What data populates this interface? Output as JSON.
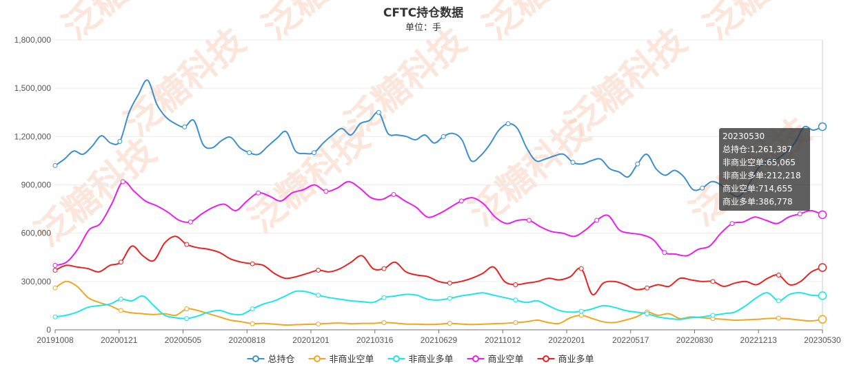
{
  "chart_data": {
    "type": "line",
    "title": "CFTC持仓数据",
    "subtitle": "单位：手",
    "watermark": "泛糖科技",
    "ylim": [
      0,
      1800000
    ],
    "yticks": [
      "0",
      "300,000",
      "600,000",
      "900,000",
      "1,200,000",
      "1,500,000",
      "1,800,000"
    ],
    "xticks": [
      "20191008",
      "20200121",
      "20200505",
      "20200818",
      "20201201",
      "20210316",
      "20210629",
      "20211012",
      "20220201",
      "20220517",
      "20220830",
      "20221213",
      "20230530"
    ],
    "x_range": [
      "20191008",
      "20230530"
    ],
    "grid": true,
    "legend_position": "bottom",
    "series": [
      {
        "name": "总持仓",
        "color": "#3b8fd0",
        "values": [
          1020000,
          1060000,
          1110000,
          1090000,
          1140000,
          1205000,
          1160000,
          1170000,
          1350000,
          1460000,
          1550000,
          1400000,
          1320000,
          1280000,
          1260000,
          1300000,
          1150000,
          1130000,
          1175000,
          1195000,
          1130000,
          1100000,
          1090000,
          1140000,
          1190000,
          1230000,
          1110000,
          1095000,
          1100000,
          1160000,
          1210000,
          1250000,
          1210000,
          1280000,
          1300000,
          1350000,
          1220000,
          1210000,
          1200000,
          1180000,
          1210000,
          1160000,
          1200000,
          1220000,
          1180000,
          1050000,
          1080000,
          1150000,
          1240000,
          1280000,
          1250000,
          1130000,
          1050000,
          1060000,
          1080000,
          1090000,
          1040000,
          1030000,
          1050000,
          1060000,
          1000000,
          980000,
          950000,
          1030000,
          1090000,
          1000000,
          960000,
          990000,
          950000,
          870000,
          880000,
          920000,
          900000,
          850000,
          830000,
          900000,
          1000000,
          1050000,
          1060000,
          1100000,
          1160000,
          1260000,
          1240000,
          1261387
        ]
      },
      {
        "name": "非商业空单",
        "color": "#f5a41c",
        "values": [
          260000,
          300000,
          270000,
          200000,
          170000,
          150000,
          120000,
          105000,
          100000,
          95000,
          100000,
          90000,
          130000,
          120000,
          100000,
          80000,
          60000,
          50000,
          38000,
          40000,
          35000,
          30000,
          32000,
          34000,
          36000,
          40000,
          42000,
          38000,
          40000,
          40000,
          45000,
          42000,
          36000,
          35000,
          33000,
          35000,
          40000,
          36000,
          33000,
          35000,
          38000,
          40000,
          45000,
          50000,
          60000,
          45000,
          40000,
          75000,
          90000,
          70000,
          50000,
          45000,
          60000,
          80000,
          110000,
          90000,
          100000,
          70000,
          80000,
          75000,
          70000,
          65000,
          60000,
          62000,
          65000,
          70000,
          72000,
          68000,
          60000,
          55000,
          65065
        ]
      },
      {
        "name": "非商业多单",
        "color": "#19e8e8",
        "values": [
          80000,
          90000,
          110000,
          140000,
          150000,
          160000,
          190000,
          180000,
          210000,
          150000,
          90000,
          75000,
          70000,
          85000,
          110000,
          120000,
          100000,
          95000,
          130000,
          160000,
          180000,
          210000,
          240000,
          235000,
          215000,
          200000,
          190000,
          180000,
          175000,
          170000,
          200000,
          210000,
          220000,
          215000,
          190000,
          185000,
          195000,
          210000,
          220000,
          230000,
          215000,
          200000,
          185000,
          170000,
          180000,
          150000,
          120000,
          110000,
          115000,
          130000,
          150000,
          140000,
          120000,
          110000,
          100000,
          80000,
          70000,
          65000,
          75000,
          80000,
          90000,
          100000,
          110000,
          150000,
          200000,
          230000,
          180000,
          220000,
          230000,
          215000,
          212218
        ]
      },
      {
        "name": "商业空单",
        "color": "#f01af0",
        "values": [
          400000,
          420000,
          500000,
          620000,
          660000,
          780000,
          920000,
          860000,
          800000,
          770000,
          730000,
          680000,
          670000,
          720000,
          760000,
          780000,
          740000,
          800000,
          850000,
          830000,
          800000,
          850000,
          870000,
          900000,
          860000,
          880000,
          920000,
          880000,
          820000,
          810000,
          840000,
          800000,
          760000,
          700000,
          720000,
          760000,
          800000,
          820000,
          780000,
          700000,
          660000,
          680000,
          680000,
          640000,
          610000,
          600000,
          580000,
          620000,
          680000,
          710000,
          620000,
          600000,
          590000,
          560000,
          480000,
          470000,
          460000,
          500000,
          520000,
          600000,
          660000,
          670000,
          700000,
          680000,
          660000,
          700000,
          720000,
          740000,
          714655
        ]
      },
      {
        "name": "商业多单",
        "color": "#f01e1e",
        "values": [
          370000,
          400000,
          390000,
          380000,
          360000,
          400000,
          420000,
          520000,
          460000,
          430000,
          540000,
          580000,
          530000,
          510000,
          500000,
          480000,
          440000,
          420000,
          410000,
          400000,
          350000,
          320000,
          330000,
          350000,
          370000,
          360000,
          380000,
          420000,
          460000,
          380000,
          380000,
          420000,
          360000,
          340000,
          330000,
          300000,
          290000,
          300000,
          320000,
          350000,
          390000,
          300000,
          280000,
          290000,
          300000,
          320000,
          310000,
          330000,
          380000,
          220000,
          290000,
          300000,
          280000,
          250000,
          260000,
          280000,
          270000,
          320000,
          310000,
          300000,
          300000,
          270000,
          290000,
          300000,
          280000,
          320000,
          340000,
          280000,
          300000,
          360000,
          386778
        ]
      }
    ],
    "tooltip": {
      "date": "20230530",
      "lines": [
        "总持仓:1,261,387",
        "非商业空单:65,065",
        "非商业多单:212,218",
        "商业空单:714,655",
        "商业多单:386,778"
      ]
    }
  }
}
